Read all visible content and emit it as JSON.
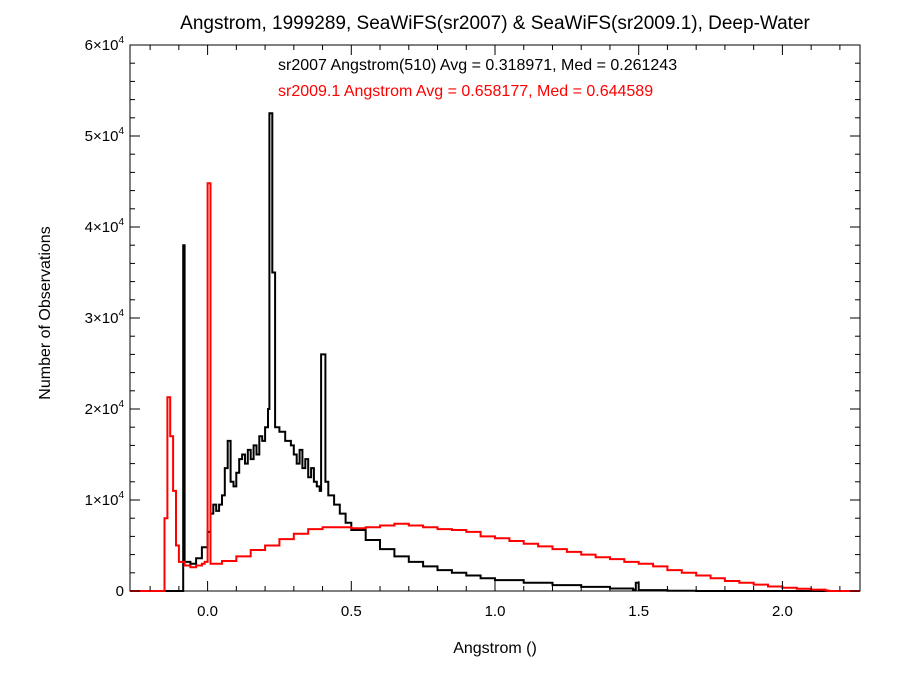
{
  "chart_data": {
    "type": "histogram",
    "title": "Angstrom, 1999289, SeaWiFS(sr2007) & SeaWiFS(sr2009.1), Deep-Water",
    "xlabel": "Angstrom ()",
    "ylabel": "Number of Observations",
    "xlim": [
      -0.27,
      2.27
    ],
    "ylim": [
      0,
      60000
    ],
    "x_ticks": [
      {
        "value": 0.0,
        "label": "0.0"
      },
      {
        "value": 0.5,
        "label": "0.5"
      },
      {
        "value": 1.0,
        "label": "1.0"
      },
      {
        "value": 1.5,
        "label": "1.5"
      },
      {
        "value": 2.0,
        "label": "2.0"
      }
    ],
    "y_ticks": [
      {
        "value": 0,
        "label": "0",
        "exp": ""
      },
      {
        "value": 10000,
        "label": "1×10",
        "exp": "4"
      },
      {
        "value": 20000,
        "label": "2×10",
        "exp": "4"
      },
      {
        "value": 30000,
        "label": "3×10",
        "exp": "4"
      },
      {
        "value": 40000,
        "label": "4×10",
        "exp": "4"
      },
      {
        "value": 50000,
        "label": "5×10",
        "exp": "4"
      },
      {
        "value": 60000,
        "label": "6×10",
        "exp": "4"
      }
    ],
    "annotations": [
      {
        "text": "sr2007 Angstrom(510) Avg = 0.318971, Med = 0.261243",
        "color": "#000000"
      },
      {
        "text": "sr2009.1 Angstrom Avg = 0.658177, Med = 0.644589",
        "color": "#ff0000"
      }
    ],
    "series": [
      {
        "color": "#000000",
        "points": [
          [
            -0.27,
            0
          ],
          [
            -0.09,
            0
          ],
          [
            -0.085,
            38000
          ],
          [
            -0.08,
            3200
          ],
          [
            -0.06,
            3000
          ],
          [
            -0.04,
            3600
          ],
          [
            -0.02,
            4800
          ],
          [
            0.0,
            6500
          ],
          [
            0.01,
            8500
          ],
          [
            0.02,
            9500
          ],
          [
            0.03,
            8800
          ],
          [
            0.04,
            9500
          ],
          [
            0.05,
            10500
          ],
          [
            0.06,
            13500
          ],
          [
            0.07,
            16500
          ],
          [
            0.08,
            12000
          ],
          [
            0.09,
            11500
          ],
          [
            0.1,
            13000
          ],
          [
            0.11,
            14500
          ],
          [
            0.12,
            15000
          ],
          [
            0.13,
            14000
          ],
          [
            0.14,
            15500
          ],
          [
            0.15,
            14500
          ],
          [
            0.16,
            16000
          ],
          [
            0.17,
            15000
          ],
          [
            0.18,
            17000
          ],
          [
            0.19,
            16500
          ],
          [
            0.2,
            18000
          ],
          [
            0.21,
            20000
          ],
          [
            0.215,
            52500
          ],
          [
            0.225,
            35000
          ],
          [
            0.235,
            18000
          ],
          [
            0.25,
            17500
          ],
          [
            0.27,
            16500
          ],
          [
            0.29,
            16000
          ],
          [
            0.3,
            15000
          ],
          [
            0.31,
            14000
          ],
          [
            0.32,
            15500
          ],
          [
            0.33,
            13500
          ],
          [
            0.34,
            14500
          ],
          [
            0.35,
            12500
          ],
          [
            0.36,
            13500
          ],
          [
            0.37,
            12000
          ],
          [
            0.38,
            11500
          ],
          [
            0.39,
            11000
          ],
          [
            0.395,
            26000
          ],
          [
            0.41,
            12000
          ],
          [
            0.42,
            10500
          ],
          [
            0.44,
            9500
          ],
          [
            0.46,
            8500
          ],
          [
            0.48,
            7500
          ],
          [
            0.5,
            6700
          ],
          [
            0.55,
            5600
          ],
          [
            0.6,
            4600
          ],
          [
            0.65,
            3800
          ],
          [
            0.7,
            3200
          ],
          [
            0.75,
            2700
          ],
          [
            0.8,
            2300
          ],
          [
            0.85,
            2000
          ],
          [
            0.9,
            1700
          ],
          [
            0.95,
            1400
          ],
          [
            1.0,
            1200
          ],
          [
            1.1,
            900
          ],
          [
            1.2,
            650
          ],
          [
            1.3,
            450
          ],
          [
            1.4,
            280
          ],
          [
            1.48,
            150
          ],
          [
            1.49,
            900
          ],
          [
            1.5,
            100
          ],
          [
            1.6,
            30
          ],
          [
            1.7,
            0
          ],
          [
            2.27,
            0
          ]
        ]
      },
      {
        "color": "#ff0000",
        "points": [
          [
            -0.27,
            0
          ],
          [
            -0.16,
            0
          ],
          [
            -0.15,
            8000
          ],
          [
            -0.14,
            21300
          ],
          [
            -0.13,
            17000
          ],
          [
            -0.12,
            11000
          ],
          [
            -0.11,
            5000
          ],
          [
            -0.1,
            3200
          ],
          [
            -0.08,
            2800
          ],
          [
            -0.06,
            2600
          ],
          [
            -0.04,
            2800
          ],
          [
            -0.02,
            3000
          ],
          [
            -0.01,
            3200
          ],
          [
            0.0,
            44800
          ],
          [
            0.01,
            3000
          ],
          [
            0.05,
            3300
          ],
          [
            0.1,
            3800
          ],
          [
            0.15,
            4500
          ],
          [
            0.2,
            5000
          ],
          [
            0.25,
            5700
          ],
          [
            0.3,
            6300
          ],
          [
            0.35,
            6800
          ],
          [
            0.4,
            7000
          ],
          [
            0.45,
            7000
          ],
          [
            0.5,
            6900
          ],
          [
            0.55,
            7000
          ],
          [
            0.6,
            7200
          ],
          [
            0.65,
            7400
          ],
          [
            0.7,
            7200
          ],
          [
            0.75,
            7000
          ],
          [
            0.8,
            6800
          ],
          [
            0.85,
            6700
          ],
          [
            0.9,
            6500
          ],
          [
            0.95,
            6000
          ],
          [
            1.0,
            5800
          ],
          [
            1.05,
            5500
          ],
          [
            1.1,
            5200
          ],
          [
            1.15,
            4900
          ],
          [
            1.2,
            4600
          ],
          [
            1.25,
            4300
          ],
          [
            1.3,
            4000
          ],
          [
            1.35,
            3700
          ],
          [
            1.4,
            3500
          ],
          [
            1.45,
            3200
          ],
          [
            1.5,
            3000
          ],
          [
            1.55,
            2700
          ],
          [
            1.6,
            2300
          ],
          [
            1.65,
            2000
          ],
          [
            1.7,
            1700
          ],
          [
            1.75,
            1400
          ],
          [
            1.8,
            1100
          ],
          [
            1.85,
            900
          ],
          [
            1.9,
            700
          ],
          [
            1.95,
            500
          ],
          [
            2.0,
            350
          ],
          [
            2.05,
            250
          ],
          [
            2.1,
            150
          ],
          [
            2.15,
            50
          ],
          [
            2.16,
            0
          ],
          [
            2.27,
            0
          ]
        ]
      }
    ]
  }
}
